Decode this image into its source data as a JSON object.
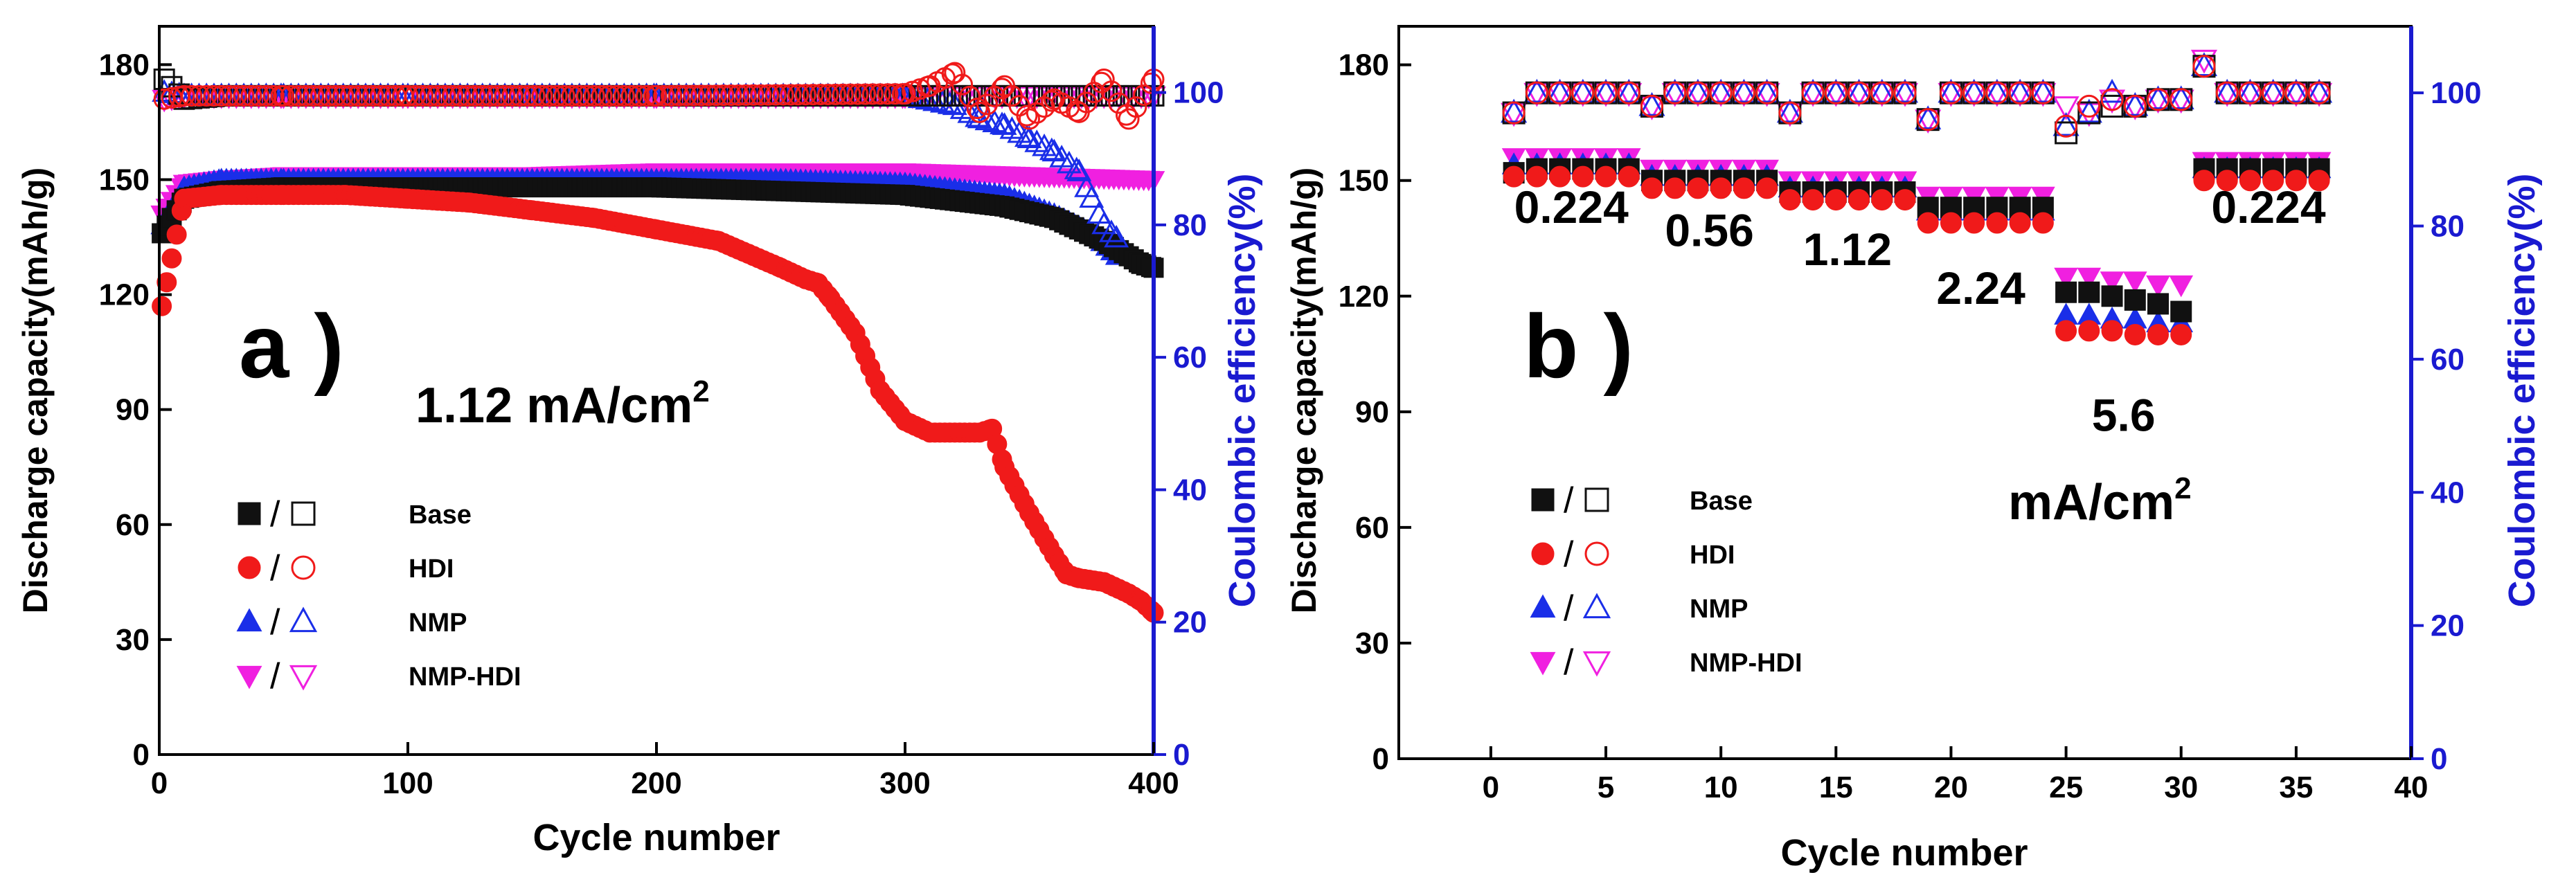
{
  "chart_data": [
    {
      "panel": "a",
      "type": "scatter",
      "panel_label": "a )",
      "annotation_value": "1.12 mA/cm",
      "annotation_sup": "2",
      "xlabel": "Cycle number",
      "ylabel_left": "Discharge capacity(mAh/g)",
      "ylabel_right": "Coulombic efficiency(%)",
      "xlim": [
        0,
        400
      ],
      "ylim_left": [
        0,
        190
      ],
      "ylim_right": [
        0,
        110
      ],
      "xticks": [
        0,
        100,
        200,
        300,
        400
      ],
      "yticks_left": [
        0,
        30,
        60,
        90,
        120,
        150,
        180
      ],
      "yticks_right": [
        0,
        20,
        40,
        60,
        80,
        100
      ],
      "legend": [
        {
          "name": "Base",
          "color": "#111111",
          "filled": "square",
          "open": "square"
        },
        {
          "name": "HDI",
          "color": "#f01a1a",
          "filled": "circle",
          "open": "circle"
        },
        {
          "name": "NMP",
          "color": "#1a2ee8",
          "filled": "triangle-up",
          "open": "triangle-up"
        },
        {
          "name": "NMP-HDI",
          "color": "#f020e0",
          "filled": "triangle-down",
          "open": "triangle-down"
        }
      ],
      "series": [
        {
          "name": "Base",
          "metric": "capacity",
          "x": [
            1,
            10,
            25,
            50,
            100,
            150,
            200,
            250,
            300,
            340,
            360,
            380,
            395,
            400
          ],
          "y": [
            136,
            145,
            147,
            148,
            148,
            148,
            148,
            147,
            146,
            143,
            140,
            134,
            128,
            127
          ]
        },
        {
          "name": "HDI",
          "metric": "capacity",
          "x": [
            1,
            10,
            25,
            50,
            75,
            100,
            125,
            150,
            175,
            200,
            225,
            250,
            260,
            265,
            270,
            280,
            290,
            300,
            310,
            320,
            330,
            335,
            340,
            350,
            360,
            365,
            370,
            380,
            390,
            395,
            400
          ],
          "y": [
            117,
            145,
            146,
            146,
            146,
            145,
            144,
            142,
            140,
            137,
            134,
            127,
            124,
            123,
            119,
            110,
            95,
            87,
            84,
            84,
            84,
            85,
            75,
            63,
            52,
            47,
            46,
            45,
            42,
            40,
            37
          ]
        },
        {
          "name": "NMP",
          "metric": "capacity",
          "x": [
            1,
            10,
            25,
            50,
            100,
            150,
            200,
            250,
            300,
            340,
            360,
            375,
            385
          ],
          "y": [
            138,
            148,
            150,
            150,
            150,
            150,
            150,
            150,
            149,
            146,
            141,
            136,
            130
          ]
        },
        {
          "name": "NMP-HDI",
          "metric": "capacity",
          "x": [
            1,
            10,
            25,
            50,
            100,
            150,
            200,
            250,
            300,
            350,
            400
          ],
          "y": [
            141,
            149,
            150,
            151,
            151,
            151,
            152,
            152,
            152,
            151,
            150
          ]
        },
        {
          "name": "Base",
          "metric": "coulombic_efficiency",
          "x": [
            2,
            10,
            25,
            50,
            100,
            150,
            200,
            250,
            300,
            350,
            400
          ],
          "y": [
            102,
            99,
            99.5,
            99.5,
            99.5,
            99.5,
            99.5,
            99.5,
            99.5,
            99.5,
            99.5
          ]
        },
        {
          "name": "HDI",
          "metric": "coulombic_efficiency",
          "x": [
            2,
            10,
            50,
            100,
            200,
            300,
            310,
            320,
            330,
            340,
            350,
            360,
            370,
            380,
            390,
            400
          ],
          "y": [
            99,
            99.5,
            99.5,
            99.5,
            99.5,
            99.8,
            101,
            103,
            97,
            101,
            96,
            99,
            97,
            102,
            96,
            102
          ]
        },
        {
          "name": "NMP",
          "metric": "coulombic_efficiency",
          "x": [
            2,
            10,
            50,
            100,
            200,
            300,
            320,
            330,
            340,
            350,
            360,
            370,
            375,
            380,
            385
          ],
          "y": [
            100,
            99.5,
            99.5,
            99.5,
            99.5,
            99.5,
            98,
            96,
            95,
            93,
            91,
            88,
            84,
            80,
            78
          ]
        },
        {
          "name": "NMP-HDI",
          "metric": "coulombic_efficiency",
          "x": [
            2,
            10,
            50,
            100,
            200,
            300,
            350,
            400
          ],
          "y": [
            99,
            99.5,
            99.5,
            99.5,
            99.5,
            99.5,
            99.5,
            99.5
          ]
        }
      ]
    },
    {
      "panel": "b",
      "type": "scatter",
      "panel_label": "b )",
      "unit_annotation_value": "mA/cm",
      "unit_annotation_sup": "2",
      "rate_labels": [
        {
          "text": "0.224",
          "x": 3.5,
          "y": 139
        },
        {
          "text": "0.56",
          "x": 9.5,
          "y": 133
        },
        {
          "text": "1.12",
          "x": 15.5,
          "y": 128
        },
        {
          "text": "2.24",
          "x": 21.3,
          "y": 118
        },
        {
          "text": "5.6",
          "x": 27.5,
          "y": 85
        },
        {
          "text": "0.224",
          "x": 33.8,
          "y": 139
        }
      ],
      "xlabel": "Cycle number",
      "ylabel_left": "Discharge capacity(mAh/g)",
      "ylabel_right": "Coulombic efficiency(%)",
      "xlim": [
        -4,
        40
      ],
      "ylim_left": [
        0,
        190
      ],
      "ylim_right": [
        0,
        110
      ],
      "xticks": [
        0,
        5,
        10,
        15,
        20,
        25,
        30,
        35,
        40
      ],
      "yticks_left": [
        0,
        30,
        60,
        90,
        120,
        150,
        180
      ],
      "yticks_right": [
        0,
        20,
        40,
        60,
        80,
        100
      ],
      "legend": [
        {
          "name": "Base",
          "color": "#111111",
          "filled": "square",
          "open": "square"
        },
        {
          "name": "HDI",
          "color": "#f01a1a",
          "filled": "circle",
          "open": "circle"
        },
        {
          "name": "NMP",
          "color": "#1a2ee8",
          "filled": "triangle-up",
          "open": "triangle-up"
        },
        {
          "name": "NMP-HDI",
          "color": "#f020e0",
          "filled": "triangle-down",
          "open": "triangle-down"
        }
      ],
      "series": [
        {
          "name": "Base",
          "metric": "capacity",
          "x": [
            1,
            2,
            3,
            4,
            5,
            6,
            7,
            8,
            9,
            10,
            11,
            12,
            13,
            14,
            15,
            16,
            17,
            18,
            19,
            20,
            21,
            22,
            23,
            24,
            25,
            26,
            27,
            28,
            29,
            30,
            31,
            32,
            33,
            34,
            35,
            36
          ],
          "y": [
            152,
            153,
            153,
            153,
            153,
            153,
            150,
            150,
            150,
            150,
            150,
            150,
            147,
            147,
            147,
            147,
            147,
            147,
            143,
            143,
            143,
            143,
            143,
            143,
            121,
            121,
            120,
            119,
            118,
            116,
            153,
            153,
            153,
            153,
            153,
            153
          ]
        },
        {
          "name": "HDI",
          "metric": "capacity",
          "x": [
            1,
            2,
            3,
            4,
            5,
            6,
            7,
            8,
            9,
            10,
            11,
            12,
            13,
            14,
            15,
            16,
            17,
            18,
            19,
            20,
            21,
            22,
            23,
            24,
            25,
            26,
            27,
            28,
            29,
            30,
            31,
            32,
            33,
            34,
            35,
            36
          ],
          "y": [
            151,
            151,
            151,
            151,
            151,
            151,
            148,
            148,
            148,
            148,
            148,
            148,
            145,
            145,
            145,
            145,
            145,
            145,
            139,
            139,
            139,
            139,
            139,
            139,
            111,
            111,
            111,
            110,
            110,
            110,
            150,
            150,
            150,
            150,
            150,
            150
          ]
        },
        {
          "name": "NMP",
          "metric": "capacity",
          "x": [
            1,
            2,
            3,
            4,
            5,
            6,
            7,
            8,
            9,
            10,
            11,
            12,
            13,
            14,
            15,
            16,
            17,
            18,
            19,
            20,
            21,
            22,
            23,
            24,
            25,
            26,
            27,
            28,
            29,
            30,
            31,
            32,
            33,
            34,
            35,
            36
          ],
          "y": [
            154,
            154,
            154,
            154,
            154,
            154,
            151,
            151,
            151,
            151,
            151,
            151,
            148,
            148,
            148,
            148,
            148,
            148,
            142,
            142,
            142,
            142,
            142,
            142,
            115,
            115,
            114,
            114,
            113,
            113,
            153,
            153,
            153,
            153,
            153,
            153
          ]
        },
        {
          "name": "NMP-HDI",
          "metric": "capacity",
          "x": [
            1,
            2,
            3,
            4,
            5,
            6,
            7,
            8,
            9,
            10,
            11,
            12,
            13,
            14,
            15,
            16,
            17,
            18,
            19,
            20,
            21,
            22,
            23,
            24,
            25,
            26,
            27,
            28,
            29,
            30,
            31,
            32,
            33,
            34,
            35,
            36
          ],
          "y": [
            156,
            156,
            156,
            156,
            156,
            156,
            153,
            153,
            153,
            153,
            153,
            153,
            150,
            150,
            150,
            150,
            150,
            150,
            146,
            146,
            146,
            146,
            146,
            146,
            125,
            125,
            124,
            124,
            123,
            123,
            155,
            155,
            155,
            155,
            155,
            155
          ]
        },
        {
          "name": "Base",
          "metric": "coulombic_efficiency",
          "x": [
            1,
            2,
            3,
            4,
            5,
            6,
            7,
            8,
            9,
            10,
            11,
            12,
            13,
            14,
            15,
            16,
            17,
            18,
            19,
            20,
            21,
            22,
            23,
            24,
            25,
            26,
            27,
            28,
            29,
            30,
            31,
            32,
            33,
            34,
            35,
            36
          ],
          "y": [
            97,
            100,
            100,
            100,
            100,
            100,
            98,
            100,
            100,
            100,
            100,
            100,
            97,
            100,
            100,
            100,
            100,
            100,
            96,
            100,
            100,
            100,
            100,
            100,
            94,
            97,
            98,
            98,
            99,
            99,
            104,
            100,
            100,
            100,
            100,
            100
          ]
        },
        {
          "name": "HDI",
          "metric": "coulombic_efficiency",
          "x": [
            1,
            2,
            3,
            4,
            5,
            6,
            7,
            8,
            9,
            10,
            11,
            12,
            13,
            14,
            15,
            16,
            17,
            18,
            19,
            20,
            21,
            22,
            23,
            24,
            25,
            26,
            27,
            28,
            29,
            30,
            31,
            32,
            33,
            34,
            35,
            36
          ],
          "y": [
            97,
            100,
            100,
            100,
            100,
            100,
            98,
            100,
            100,
            100,
            100,
            100,
            97,
            100,
            100,
            100,
            100,
            100,
            96,
            100,
            100,
            100,
            100,
            100,
            95,
            98,
            99,
            98,
            99,
            99,
            104,
            100,
            100,
            100,
            100,
            100
          ]
        },
        {
          "name": "NMP",
          "metric": "coulombic_efficiency",
          "x": [
            1,
            2,
            3,
            4,
            5,
            6,
            7,
            8,
            9,
            10,
            11,
            12,
            13,
            14,
            15,
            16,
            17,
            18,
            19,
            20,
            21,
            22,
            23,
            24,
            25,
            26,
            27,
            28,
            29,
            30,
            31,
            32,
            33,
            34,
            35,
            36
          ],
          "y": [
            97,
            100,
            100,
            100,
            100,
            100,
            98,
            100,
            100,
            100,
            100,
            100,
            97,
            100,
            100,
            100,
            100,
            100,
            96,
            100,
            100,
            100,
            100,
            100,
            95,
            97,
            100,
            98,
            99,
            99,
            104,
            100,
            100,
            100,
            100,
            100
          ]
        },
        {
          "name": "NMP-HDI",
          "metric": "coulombic_efficiency",
          "x": [
            1,
            2,
            3,
            4,
            5,
            6,
            7,
            8,
            9,
            10,
            11,
            12,
            13,
            14,
            15,
            16,
            17,
            18,
            19,
            20,
            21,
            22,
            23,
            24,
            25,
            26,
            27,
            28,
            29,
            30,
            31,
            32,
            33,
            34,
            35,
            36
          ],
          "y": [
            97,
            100,
            100,
            100,
            100,
            100,
            98,
            100,
            100,
            100,
            100,
            100,
            97,
            100,
            100,
            100,
            100,
            100,
            96,
            100,
            100,
            100,
            100,
            100,
            98,
            97,
            99,
            98,
            99,
            99,
            105,
            100,
            100,
            100,
            100,
            100
          ]
        }
      ]
    }
  ]
}
